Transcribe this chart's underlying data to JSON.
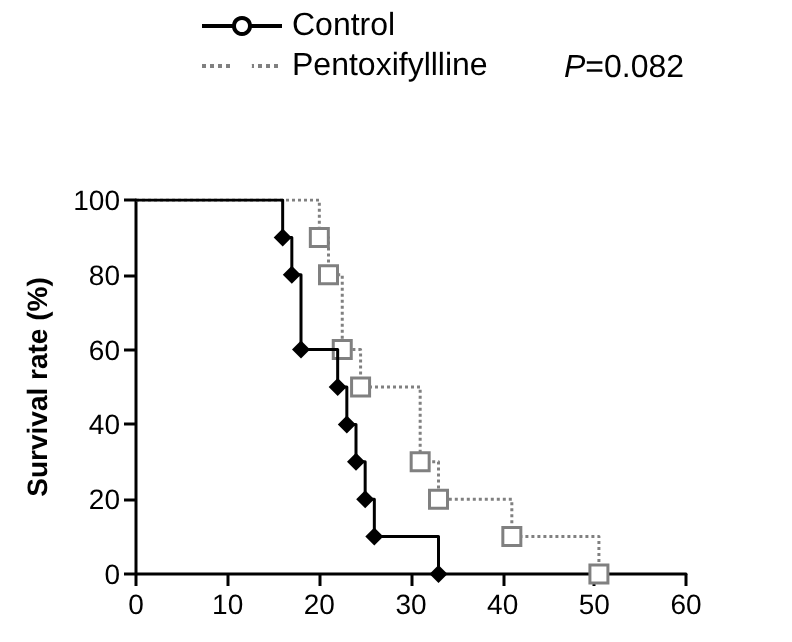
{
  "chart_data": {
    "type": "step",
    "ylabel": "Survival rate (%)",
    "annotations": [
      "P=0.082"
    ],
    "series": [
      {
        "name": "Control",
        "color": "#000000",
        "marker": "diamond",
        "line_style": "solid",
        "x": [
          0,
          16,
          17,
          18,
          22,
          23,
          24,
          25,
          26,
          33
        ],
        "values": [
          100,
          90,
          80,
          60,
          50,
          40,
          30,
          20,
          10,
          0
        ]
      },
      {
        "name": "Pentoxifyllline",
        "color": "#808080",
        "marker": "square",
        "line_style": "dotted",
        "x": [
          0,
          20,
          21,
          22.5,
          24.5,
          31,
          33,
          41,
          50.5
        ],
        "values": [
          100,
          90,
          80,
          60,
          50,
          30,
          20,
          10,
          0
        ]
      }
    ],
    "xlim": [
      0,
      60
    ],
    "xticks": [
      0,
      10,
      20,
      30,
      40,
      50,
      60
    ],
    "ylim": [
      0,
      100
    ],
    "yticks": [
      0,
      20,
      40,
      60,
      80,
      100
    ],
    "grid": false,
    "legend": "top"
  }
}
